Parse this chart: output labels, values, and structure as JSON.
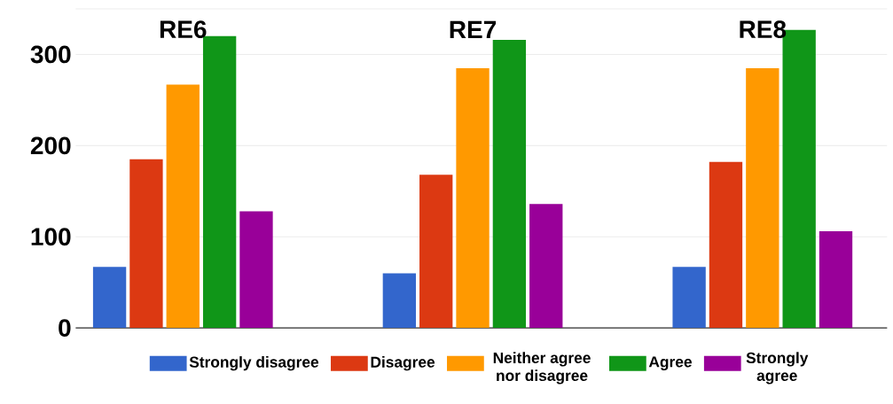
{
  "chart_data": {
    "type": "bar",
    "categories": [
      "RE6",
      "RE7",
      "RE8"
    ],
    "series": [
      {
        "name": "Strongly disagree",
        "color": "#3366cc",
        "values": [
          67,
          60,
          67
        ]
      },
      {
        "name": "Disagree",
        "color": "#dc3912",
        "values": [
          185,
          168,
          182
        ]
      },
      {
        "name": "Neither agree nor disagree",
        "color": "#ff9900",
        "values": [
          267,
          285,
          285
        ]
      },
      {
        "name": "Agree",
        "color": "#109618",
        "values": [
          320,
          316,
          327
        ]
      },
      {
        "name": "Strongly agree",
        "color": "#990099",
        "values": [
          128,
          136,
          106
        ]
      }
    ],
    "ylim": [
      0,
      350
    ],
    "yticks": [
      0,
      100,
      200,
      300
    ],
    "grid": "y",
    "legend": "bottom"
  }
}
